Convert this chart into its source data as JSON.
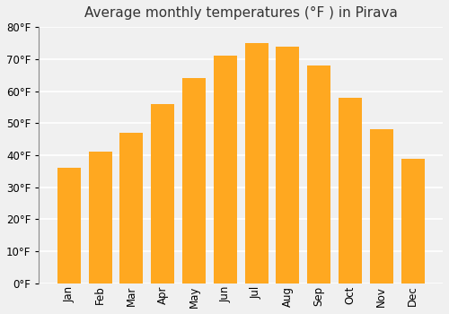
{
  "title": "Average monthly temperatures (°F ) in Pirava",
  "months": [
    "Jan",
    "Feb",
    "Mar",
    "Apr",
    "May",
    "Jun",
    "Jul",
    "Aug",
    "Sep",
    "Oct",
    "Nov",
    "Dec"
  ],
  "values": [
    36,
    41,
    47,
    56,
    64,
    71,
    75,
    74,
    68,
    58,
    48,
    39
  ],
  "bar_color_face": "#FFA820",
  "bar_color_edge": "none",
  "ylim": [
    0,
    80
  ],
  "yticks": [
    0,
    10,
    20,
    30,
    40,
    50,
    60,
    70,
    80
  ],
  "background_color": "#f0f0f0",
  "grid_color": "#ffffff",
  "title_fontsize": 11,
  "tick_fontsize": 8.5,
  "bar_width": 0.75
}
